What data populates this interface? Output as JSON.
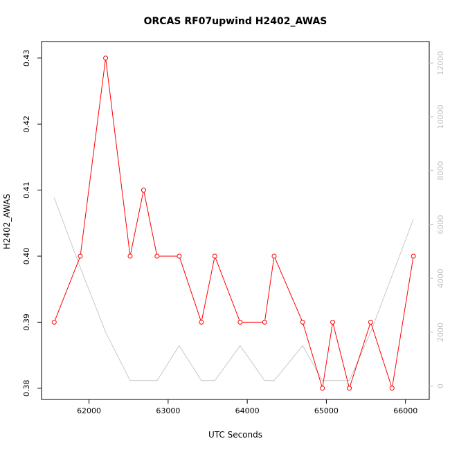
{
  "chart_data": {
    "type": "line",
    "title": "ORCAS RF07upwind H2402_AWAS",
    "xlabel": "UTC Seconds",
    "ylabel": "H2402_AWAS",
    "xlim": [
      61400,
      66300
    ],
    "ylim": [
      0.3783,
      0.4325
    ],
    "y2lim": [
      -500,
      12800
    ],
    "x_ticks": [
      62000,
      63000,
      64000,
      65000,
      66000
    ],
    "y_ticks": [
      0.38,
      0.39,
      0.4,
      0.41,
      0.42,
      0.43
    ],
    "y2_ticks": [
      0,
      2000,
      4000,
      6000,
      8000,
      10000,
      12000
    ],
    "grid": false,
    "legend": "none",
    "series": [
      {
        "axis": "left",
        "color": "#ff0000",
        "markers": "open-circle",
        "x": [
          61560,
          61890,
          62210,
          62520,
          62690,
          62860,
          63140,
          63420,
          63590,
          63910,
          64220,
          64340,
          64700,
          64950,
          65080,
          65290,
          65560,
          65830,
          66100
        ],
        "y": [
          0.39,
          0.4,
          0.43,
          0.4,
          0.41,
          0.4,
          0.4,
          0.39,
          0.4,
          0.39,
          0.39,
          0.4,
          0.39,
          0.38,
          0.39,
          0.38,
          0.39,
          0.38,
          0.4
        ]
      },
      {
        "axis": "right",
        "color": "#c8c8c8",
        "markers": "none",
        "x": [
          61560,
          61890,
          62210,
          62520,
          62690,
          62860,
          63140,
          63420,
          63590,
          63910,
          64220,
          64340,
          64700,
          64950,
          65080,
          65290,
          65560,
          65830,
          66100
        ],
        "y": [
          7000,
          4400,
          2000,
          200,
          200,
          200,
          1500,
          200,
          200,
          1500,
          200,
          200,
          1500,
          200,
          200,
          200,
          2000,
          4100,
          6200
        ]
      }
    ]
  }
}
